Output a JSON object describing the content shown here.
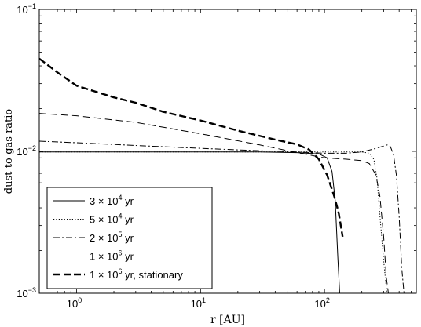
{
  "chart_data": {
    "type": "line",
    "xlabel": "r [AU]",
    "ylabel": "dust-to-gas ratio",
    "xscale": "log",
    "yscale": "log",
    "xlim": [
      0.5,
      550
    ],
    "ylim": [
      0.001,
      0.1
    ],
    "x_ticks": [
      {
        "value": 1,
        "mantissa": "10",
        "exp": "0"
      },
      {
        "value": 10,
        "mantissa": "10",
        "exp": "1"
      },
      {
        "value": 100,
        "mantissa": "10",
        "exp": "2"
      }
    ],
    "y_ticks": [
      {
        "value": 0.001,
        "mantissa": "10",
        "exp": "−3"
      },
      {
        "value": 0.01,
        "mantissa": "10",
        "exp": "−2"
      },
      {
        "value": 0.1,
        "mantissa": "10",
        "exp": "−1"
      }
    ],
    "grid": false,
    "legend_position": "bottom-left",
    "series": [
      {
        "name": "3 × 10⁴ yr",
        "name_base": "3 × 10",
        "name_exp": "4",
        "name_suffix": " yr",
        "style": "solid",
        "color": "#000000",
        "x": [
          0.5,
          1,
          3,
          10,
          30,
          60,
          90,
          105,
          115,
          122,
          128,
          133
        ],
        "y": [
          0.0099,
          0.0099,
          0.0099,
          0.0099,
          0.0099,
          0.0098,
          0.0096,
          0.009,
          0.0072,
          0.0045,
          0.0018,
          0.00095
        ]
      },
      {
        "name": "5 × 10⁴ yr",
        "name_base": "5 × 10",
        "name_exp": "4",
        "name_suffix": " yr",
        "style": "dotted",
        "color": "#000000",
        "x": [
          0.5,
          1,
          3,
          10,
          30,
          60,
          100,
          150,
          200,
          230,
          250,
          265,
          280,
          300,
          320
        ],
        "y": [
          0.0099,
          0.0099,
          0.0099,
          0.0099,
          0.0099,
          0.0099,
          0.0099,
          0.0099,
          0.0099,
          0.0097,
          0.0088,
          0.0065,
          0.0035,
          0.0017,
          0.00095
        ]
      },
      {
        "name": "2 × 10⁵ yr",
        "name_base": "2 × 10",
        "name_exp": "5",
        "name_suffix": " yr",
        "style": "dashdot",
        "color": "#000000",
        "x": [
          0.5,
          1,
          3,
          10,
          30,
          60,
          100,
          150,
          200,
          250,
          300,
          320,
          340,
          360,
          380,
          400,
          420,
          440
        ],
        "y": [
          0.0118,
          0.0115,
          0.011,
          0.0105,
          0.0101,
          0.0099,
          0.0097,
          0.0097,
          0.0099,
          0.0104,
          0.0109,
          0.0111,
          0.0108,
          0.0095,
          0.0068,
          0.0035,
          0.0015,
          0.00095
        ]
      },
      {
        "name": "1 × 10⁶ yr",
        "name_base": "1 × 10",
        "name_exp": "6",
        "name_suffix": " yr",
        "style": "dashed",
        "color": "#000000",
        "x": [
          0.5,
          1,
          3,
          10,
          30,
          60,
          100,
          150,
          200,
          230,
          260,
          280,
          300,
          315,
          330
        ],
        "y": [
          0.0185,
          0.0178,
          0.016,
          0.0133,
          0.0111,
          0.0098,
          0.009,
          0.0088,
          0.0086,
          0.0082,
          0.0068,
          0.0048,
          0.0025,
          0.0013,
          0.00095
        ]
      },
      {
        "name": "1 × 10⁶ yr, stationary",
        "name_base": "1 × 10",
        "name_exp": "6",
        "name_suffix": " yr, stationary",
        "style": "thickdashed",
        "color": "#000000",
        "x": [
          0.5,
          0.7,
          1,
          2,
          3,
          5,
          10,
          20,
          40,
          60,
          75,
          90,
          105,
          120,
          130,
          140
        ],
        "y": [
          0.045,
          0.036,
          0.029,
          0.024,
          0.022,
          0.019,
          0.0165,
          0.014,
          0.0121,
          0.0112,
          0.0103,
          0.0088,
          0.0068,
          0.0048,
          0.0037,
          0.0025
        ]
      }
    ]
  }
}
